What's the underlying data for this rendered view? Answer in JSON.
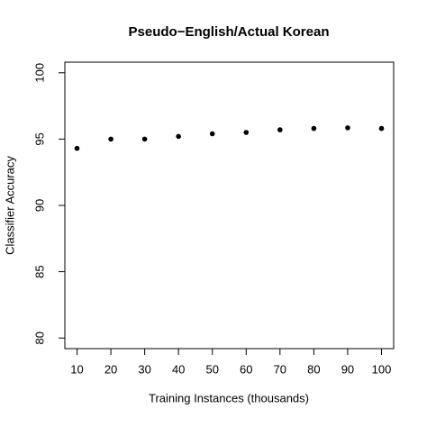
{
  "chart_data": {
    "type": "line",
    "title": "Pseudo−English/Actual Korean",
    "x_label": "Training Instances (thousands)",
    "y_label": "Classifier Accuracy",
    "x": [
      10,
      20,
      30,
      40,
      50,
      60,
      70,
      80,
      90,
      100
    ],
    "series": [
      {
        "name": "Pseudo−English/Actual Korean",
        "color": "#000000",
        "values": [
          94.3,
          95.0,
          95.0,
          95.2,
          95.4,
          95.5,
          95.7,
          95.8,
          95.85,
          95.8
        ]
      }
    ],
    "xlim": [
      6.4,
      103.6
    ],
    "ylim": [
      79.2,
      100.8
    ],
    "xticks": [
      10,
      20,
      30,
      40,
      50,
      60,
      70,
      80,
      90,
      100
    ],
    "yticks": [
      80,
      85,
      90,
      95,
      100
    ]
  }
}
